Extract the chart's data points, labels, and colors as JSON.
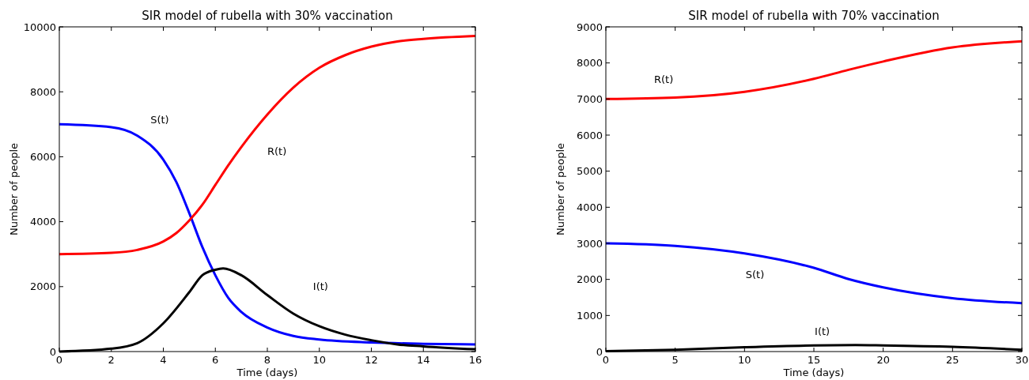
{
  "chart_data": [
    {
      "type": "line",
      "title": "SIR model of rubella with 30% vaccination",
      "xlabel": "Time (days)",
      "ylabel": "Number of people",
      "xlim": [
        0,
        16
      ],
      "xticks": [
        0,
        2,
        4,
        6,
        8,
        10,
        12,
        14,
        16
      ],
      "ylim": [
        0,
        10000
      ],
      "yticks": [
        0,
        2000,
        4000,
        6000,
        8000,
        10000
      ],
      "grid": false,
      "marker": "none",
      "line_style": "solid",
      "series": [
        {
          "name": "S(t)",
          "color": "#0000ff",
          "x": [
            0,
            2,
            3,
            4,
            4.5,
            5,
            5.5,
            6,
            6.5,
            7,
            8,
            9,
            10,
            12,
            14,
            16
          ],
          "values": [
            7000,
            6910,
            6650,
            5910,
            5220,
            4260,
            3220,
            2350,
            1650,
            1220,
            740,
            480,
            370,
            280,
            240,
            220
          ]
        },
        {
          "name": "R(t)",
          "color": "#ff0000",
          "x": [
            0,
            2,
            3,
            4,
            4.5,
            5,
            5.5,
            6,
            6.5,
            7,
            8,
            9,
            10,
            11,
            12,
            13,
            14,
            16
          ],
          "values": [
            3000,
            3040,
            3130,
            3390,
            3650,
            4040,
            4520,
            5130,
            5740,
            6300,
            7300,
            8130,
            8740,
            9130,
            9390,
            9550,
            9630,
            9720
          ]
        },
        {
          "name": "I(t)",
          "color": "#000000",
          "x": [
            0,
            2,
            3,
            4,
            5,
            5.5,
            6,
            6.3,
            7,
            8,
            9,
            10,
            11,
            12,
            13,
            14,
            16
          ],
          "values": [
            0,
            90,
            260,
            870,
            1830,
            2350,
            2520,
            2560,
            2350,
            1740,
            1170,
            780,
            520,
            350,
            220,
            160,
            70
          ]
        }
      ]
    },
    {
      "type": "line",
      "title": "SIR model of rubella with 70% vaccination",
      "xlabel": "Time (days)",
      "ylabel": "Number of people",
      "xlim": [
        0,
        30
      ],
      "xticks": [
        0,
        5,
        10,
        15,
        20,
        25,
        30
      ],
      "ylim": [
        0,
        9000
      ],
      "yticks": [
        0,
        1000,
        2000,
        3000,
        4000,
        5000,
        6000,
        7000,
        8000,
        9000
      ],
      "grid": false,
      "marker": "none",
      "line_style": "solid",
      "series": [
        {
          "name": "R(t)",
          "color": "#ff0000",
          "x": [
            0,
            5,
            10,
            15,
            17.5,
            20,
            25,
            30
          ],
          "values": [
            7000,
            7040,
            7200,
            7560,
            7810,
            8040,
            8430,
            8600
          ]
        },
        {
          "name": "S(t)",
          "color": "#0000ff",
          "x": [
            0,
            5,
            10,
            15,
            17.5,
            20,
            25,
            30
          ],
          "values": [
            3000,
            2930,
            2720,
            2320,
            2010,
            1780,
            1480,
            1340
          ]
        },
        {
          "name": "I(t)",
          "color": "#000000",
          "x": [
            0,
            5,
            10,
            15,
            18,
            20,
            25,
            30
          ],
          "values": [
            10,
            50,
            120,
            170,
            180,
            170,
            130,
            50
          ]
        }
      ]
    }
  ]
}
